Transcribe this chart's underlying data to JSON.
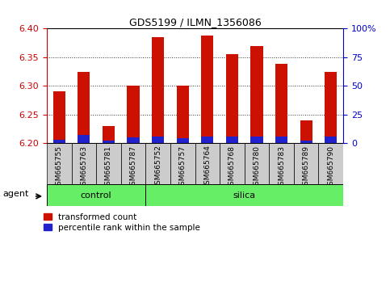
{
  "title": "GDS5199 / ILMN_1356086",
  "samples": [
    "GSM665755",
    "GSM665763",
    "GSM665781",
    "GSM665787",
    "GSM665752",
    "GSM665757",
    "GSM665764",
    "GSM665768",
    "GSM665780",
    "GSM665783",
    "GSM665789",
    "GSM665790"
  ],
  "n_control": 4,
  "n_silica": 8,
  "transformed_count": [
    6.29,
    6.325,
    6.23,
    6.3,
    6.385,
    6.3,
    6.388,
    6.355,
    6.37,
    6.338,
    6.24,
    6.325
  ],
  "percentile_rank_pct": [
    3,
    7,
    2,
    5,
    6,
    4,
    6,
    6,
    6,
    6,
    2,
    6
  ],
  "y_min": 6.2,
  "y_max": 6.4,
  "y_ticks": [
    6.2,
    6.25,
    6.3,
    6.35,
    6.4
  ],
  "y_right_ticks": [
    0,
    25,
    50,
    75,
    100
  ],
  "y_right_labels": [
    "0",
    "25",
    "50",
    "75",
    "100%"
  ],
  "bar_color_red": "#cc1100",
  "bar_color_blue": "#2222cc",
  "control_color": "#66ee66",
  "silica_color": "#66ee66",
  "legend_red_label": "transformed count",
  "legend_blue_label": "percentile rank within the sample",
  "agent_label": "agent",
  "left_tick_color": "#cc0000",
  "right_tick_color": "#0000cc",
  "bar_width": 0.5,
  "grid_dotted_color": "#333333",
  "tick_label_bg": "#cccccc",
  "plot_bg": "#ffffff"
}
